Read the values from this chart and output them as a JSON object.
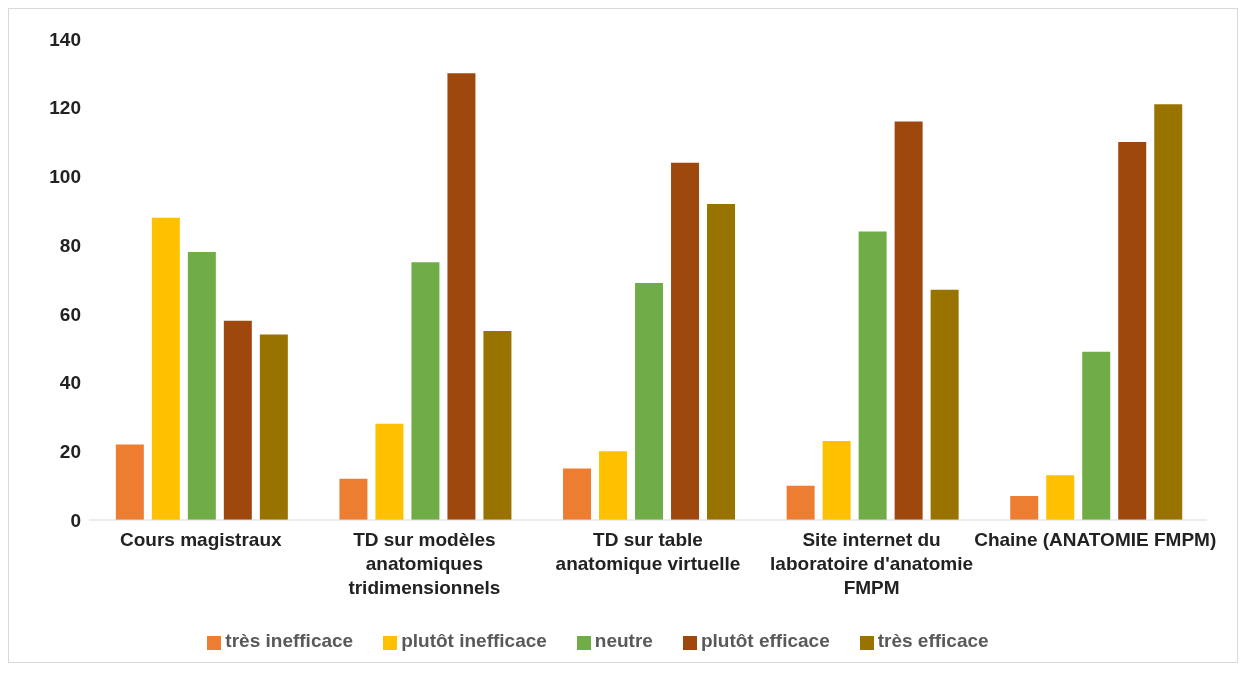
{
  "chart_data": {
    "type": "bar",
    "categories": [
      "Cours magistraux",
      "TD sur modèles anatomiques tridimensionnels",
      "TD sur table anatomique virtuelle",
      "Site internet  du laboratoire d'anatomie FMPM",
      "Chaine (ANATOMIE FMPM)"
    ],
    "series": [
      {
        "name": "très inefficace",
        "color": "#ed7d31",
        "values": [
          22,
          12,
          15,
          10,
          7
        ]
      },
      {
        "name": "plutôt inefficace",
        "color": "#ffc000",
        "values": [
          88,
          28,
          20,
          23,
          13
        ]
      },
      {
        "name": "neutre",
        "color": "#70ad47",
        "values": [
          78,
          75,
          69,
          84,
          49
        ]
      },
      {
        "name": "plutôt efficace",
        "color": "#9e480e",
        "values": [
          58,
          130,
          104,
          116,
          110
        ]
      },
      {
        "name": "très efficace",
        "color": "#997300",
        "values": [
          54,
          55,
          92,
          67,
          121
        ]
      }
    ],
    "ylim": [
      0,
      140
    ],
    "yticks": [
      0,
      20,
      40,
      60,
      80,
      100,
      120,
      140
    ],
    "grid": false,
    "legend": "bottom"
  }
}
